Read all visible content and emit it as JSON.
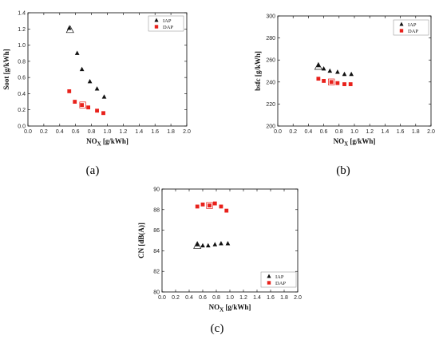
{
  "colors": {
    "iap": "#111111",
    "dap": "#e8211b"
  },
  "chart_data": [
    {
      "type": "scatter",
      "panel_label": "(a)",
      "xlabel": "NO",
      "xlabel_sub": "X",
      "xlabel_unit": " [g/kWh]",
      "ylabel": "Soot [g/kWh]",
      "xlim": [
        0.0,
        2.0
      ],
      "ylim": [
        0.0,
        1.4
      ],
      "xticks": [
        "0.0",
        "0.2",
        "0.4",
        "0.6",
        "0.8",
        "1.0",
        "1.2",
        "1.4",
        "1.6",
        "1.8",
        "2.0"
      ],
      "yticks": [
        "0.0",
        "0.2",
        "0.4",
        "0.6",
        "0.8",
        "1.0",
        "1.2",
        "1.4"
      ],
      "legend_position": "top-right",
      "series": [
        {
          "name": "IAP",
          "marker": "triangle",
          "points": [
            [
              0.52,
              1.21
            ],
            [
              0.62,
              0.9
            ],
            [
              0.68,
              0.7
            ],
            [
              0.78,
              0.55
            ],
            [
              0.87,
              0.46
            ],
            [
              0.96,
              0.36
            ]
          ],
          "highlight": [
            0.53,
            1.19
          ]
        },
        {
          "name": "DAP",
          "marker": "square",
          "points": [
            [
              0.52,
              0.43
            ],
            [
              0.59,
              0.3
            ],
            [
              0.68,
              0.26
            ],
            [
              0.76,
              0.23
            ],
            [
              0.87,
              0.19
            ],
            [
              0.95,
              0.16
            ]
          ],
          "highlight": [
            0.69,
            0.26
          ]
        }
      ]
    },
    {
      "type": "scatter",
      "panel_label": "(b)",
      "xlabel": "NO",
      "xlabel_sub": "X",
      "xlabel_unit": " [g/kWh]",
      "ylabel": "bsfc [g/kWh]",
      "xlim": [
        0.0,
        2.0
      ],
      "ylim": [
        200,
        300
      ],
      "xticks": [
        "0.0",
        "0.2",
        "0.4",
        "0.6",
        "0.8",
        "1.0",
        "1.2",
        "1.4",
        "1.6",
        "1.8",
        "2.0"
      ],
      "yticks": [
        "200",
        "220",
        "240",
        "260",
        "280",
        "300"
      ],
      "legend_position": "top-right",
      "series": [
        {
          "name": "IAP",
          "marker": "triangle",
          "points": [
            [
              0.53,
              255
            ],
            [
              0.6,
              252
            ],
            [
              0.68,
              250
            ],
            [
              0.78,
              249
            ],
            [
              0.87,
              247
            ],
            [
              0.96,
              247
            ]
          ],
          "highlight": [
            0.53,
            254
          ]
        },
        {
          "name": "DAP",
          "marker": "square",
          "points": [
            [
              0.53,
              243
            ],
            [
              0.6,
              241
            ],
            [
              0.7,
              240
            ],
            [
              0.78,
              239
            ],
            [
              0.87,
              238
            ],
            [
              0.95,
              238
            ]
          ],
          "highlight": [
            0.7,
            240
          ]
        }
      ]
    },
    {
      "type": "scatter",
      "panel_label": "(c)",
      "xlabel": "NO",
      "xlabel_sub": "X",
      "xlabel_unit": " [g/kWh]",
      "ylabel": "CN [dB(A)]",
      "xlim": [
        0.0,
        2.0
      ],
      "ylim": [
        80,
        90
      ],
      "xticks": [
        "0.0",
        "0.2",
        "0.4",
        "0.6",
        "0.8",
        "1.0",
        "1.2",
        "1.4",
        "1.6",
        "1.8",
        "2.0"
      ],
      "yticks": [
        "80",
        "82",
        "84",
        "86",
        "88",
        "90"
      ],
      "legend_position": "bottom-right",
      "series": [
        {
          "name": "IAP",
          "marker": "triangle",
          "points": [
            [
              0.52,
              84.6
            ],
            [
              0.6,
              84.5
            ],
            [
              0.68,
              84.5
            ],
            [
              0.78,
              84.6
            ],
            [
              0.87,
              84.7
            ],
            [
              0.97,
              84.7
            ]
          ],
          "highlight": [
            0.52,
            84.5
          ]
        },
        {
          "name": "DAP",
          "marker": "square",
          "points": [
            [
              0.52,
              88.3
            ],
            [
              0.6,
              88.5
            ],
            [
              0.7,
              88.4
            ],
            [
              0.78,
              88.6
            ],
            [
              0.87,
              88.3
            ],
            [
              0.95,
              87.9
            ]
          ],
          "highlight": [
            0.7,
            88.4
          ]
        }
      ]
    }
  ]
}
